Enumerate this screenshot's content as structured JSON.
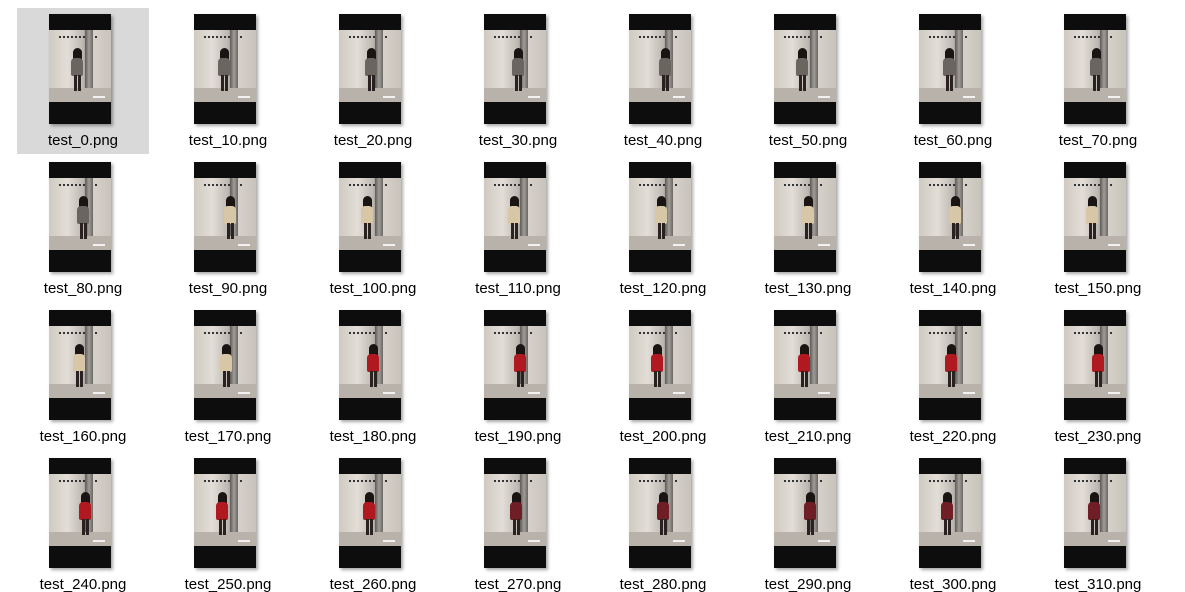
{
  "view": {
    "selected_index": 0,
    "outfit_colors": {
      "plaid": "#6b6560",
      "beige": "#d8c7a6",
      "red": "#b0191f",
      "darkred": "#6e1e24"
    }
  },
  "files": [
    {
      "name": "test_0.png",
      "outfit": "plaid"
    },
    {
      "name": "test_10.png",
      "outfit": "plaid"
    },
    {
      "name": "test_20.png",
      "outfit": "plaid"
    },
    {
      "name": "test_30.png",
      "outfit": "plaid"
    },
    {
      "name": "test_40.png",
      "outfit": "plaid"
    },
    {
      "name": "test_50.png",
      "outfit": "plaid"
    },
    {
      "name": "test_60.png",
      "outfit": "plaid"
    },
    {
      "name": "test_70.png",
      "outfit": "plaid"
    },
    {
      "name": "test_80.png",
      "outfit": "plaid"
    },
    {
      "name": "test_90.png",
      "outfit": "beige"
    },
    {
      "name": "test_100.png",
      "outfit": "beige"
    },
    {
      "name": "test_110.png",
      "outfit": "beige"
    },
    {
      "name": "test_120.png",
      "outfit": "beige"
    },
    {
      "name": "test_130.png",
      "outfit": "beige"
    },
    {
      "name": "test_140.png",
      "outfit": "beige"
    },
    {
      "name": "test_150.png",
      "outfit": "beige"
    },
    {
      "name": "test_160.png",
      "outfit": "beige"
    },
    {
      "name": "test_170.png",
      "outfit": "beige"
    },
    {
      "name": "test_180.png",
      "outfit": "red"
    },
    {
      "name": "test_190.png",
      "outfit": "red"
    },
    {
      "name": "test_200.png",
      "outfit": "red"
    },
    {
      "name": "test_210.png",
      "outfit": "red"
    },
    {
      "name": "test_220.png",
      "outfit": "red"
    },
    {
      "name": "test_230.png",
      "outfit": "red"
    },
    {
      "name": "test_240.png",
      "outfit": "red"
    },
    {
      "name": "test_250.png",
      "outfit": "red"
    },
    {
      "name": "test_260.png",
      "outfit": "red"
    },
    {
      "name": "test_270.png",
      "outfit": "darkred"
    },
    {
      "name": "test_280.png",
      "outfit": "darkred"
    },
    {
      "name": "test_290.png",
      "outfit": "darkred"
    },
    {
      "name": "test_300.png",
      "outfit": "darkred"
    },
    {
      "name": "test_310.png",
      "outfit": "darkred"
    }
  ]
}
